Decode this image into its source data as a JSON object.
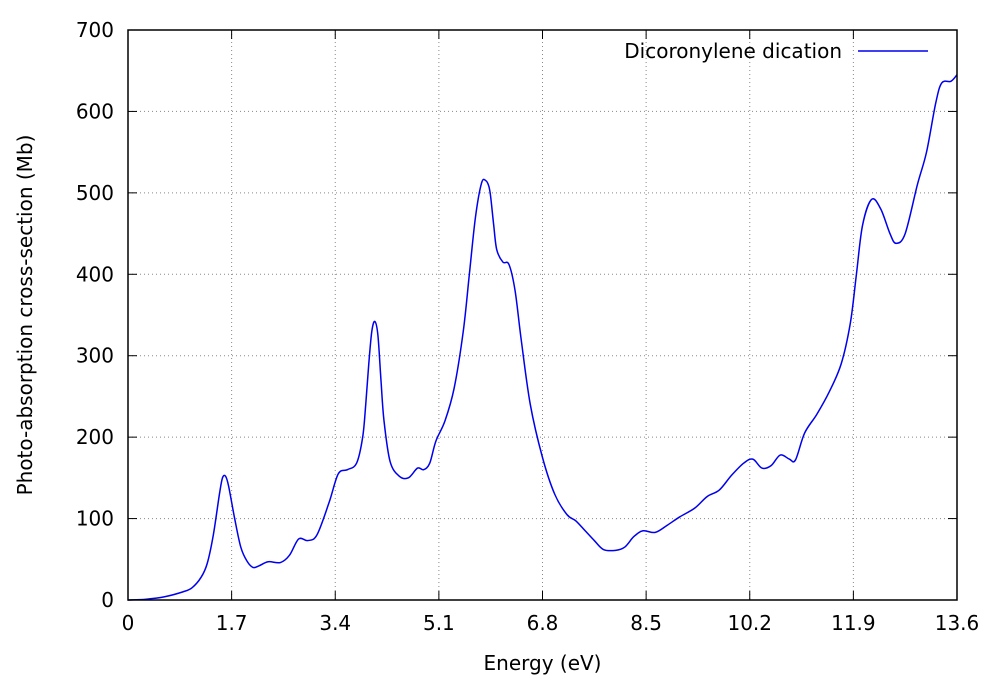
{
  "chart_data": {
    "type": "line",
    "title": "",
    "xlabel": "Energy (eV)",
    "ylabel": "Photo-absorption cross-section (Mb)",
    "xlim": [
      0,
      13.6
    ],
    "ylim": [
      0,
      700
    ],
    "xticks": [
      "0",
      "1.7",
      "3.4",
      "5.1",
      "6.8",
      "8.5",
      "10.2",
      "11.9",
      "13.6"
    ],
    "yticks": [
      "0",
      "100",
      "200",
      "300",
      "400",
      "500",
      "600",
      "700"
    ],
    "grid": true,
    "legend_position": "top-right",
    "colors": {
      "series": "#0000ee",
      "grid": "#888888",
      "axis": "#000000"
    },
    "series": [
      {
        "name": "Dicoronylene dication",
        "x": [
          0.0,
          0.3,
          0.6,
          0.9,
          1.05,
          1.2,
          1.3,
          1.4,
          1.5,
          1.55,
          1.6,
          1.65,
          1.75,
          1.85,
          1.95,
          2.05,
          2.15,
          2.3,
          2.5,
          2.65,
          2.8,
          2.95,
          3.1,
          3.3,
          3.45,
          3.6,
          3.75,
          3.85,
          3.9,
          3.95,
          4.0,
          4.05,
          4.1,
          4.15,
          4.2,
          4.3,
          4.45,
          4.6,
          4.75,
          4.85,
          4.95,
          5.05,
          5.2,
          5.35,
          5.5,
          5.6,
          5.7,
          5.8,
          5.87,
          5.92,
          5.95,
          6.0,
          6.05,
          6.15,
          6.25,
          6.35,
          6.45,
          6.6,
          6.8,
          7.0,
          7.2,
          7.35,
          7.5,
          7.65,
          7.8,
          8.0,
          8.15,
          8.3,
          8.45,
          8.65,
          8.85,
          9.05,
          9.3,
          9.5,
          9.7,
          9.9,
          10.1,
          10.25,
          10.4,
          10.55,
          10.7,
          10.85,
          10.95,
          11.1,
          11.3,
          11.5,
          11.7,
          11.85,
          11.95,
          12.05,
          12.2,
          12.35,
          12.5,
          12.6,
          12.75,
          12.95,
          13.1,
          13.25,
          13.35,
          13.5,
          13.6
        ],
        "y": [
          0,
          1,
          4,
          10,
          15,
          28,
          45,
          80,
          130,
          150,
          152,
          140,
          100,
          65,
          48,
          40,
          42,
          47,
          46,
          55,
          75,
          73,
          80,
          120,
          155,
          160,
          168,
          200,
          240,
          290,
          330,
          342,
          325,
          270,
          220,
          170,
          152,
          150,
          162,
          160,
          168,
          195,
          220,
          260,
          330,
          400,
          470,
          512,
          515,
          508,
          495,
          460,
          430,
          415,
          412,
          380,
          320,
          240,
          175,
          130,
          105,
          97,
          85,
          73,
          62,
          61,
          65,
          78,
          85,
          83,
          92,
          102,
          113,
          127,
          135,
          153,
          168,
          173,
          162,
          165,
          178,
          173,
          172,
          205,
          228,
          255,
          290,
          340,
          400,
          460,
          492,
          480,
          450,
          438,
          450,
          510,
          550,
          610,
          635,
          637,
          645
        ]
      }
    ]
  }
}
